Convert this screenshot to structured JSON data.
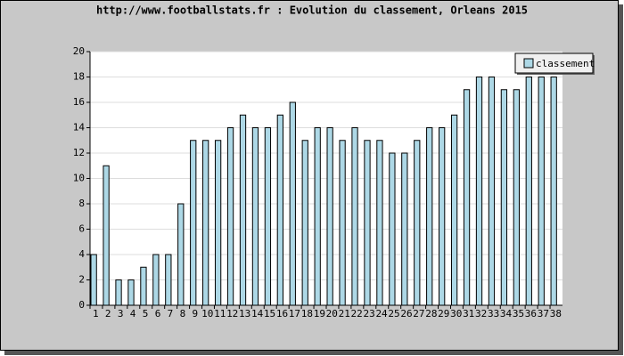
{
  "chart_data": {
    "type": "bar",
    "title": "http://www.footballstats.fr : Evolution du classement, Orleans 2015",
    "categories": [
      "1",
      "2",
      "3",
      "4",
      "5",
      "6",
      "7",
      "8",
      "9",
      "10",
      "11",
      "12",
      "13",
      "14",
      "15",
      "16",
      "17",
      "18",
      "19",
      "20",
      "21",
      "22",
      "23",
      "24",
      "25",
      "26",
      "27",
      "28",
      "29",
      "30",
      "31",
      "32",
      "33",
      "34",
      "35",
      "36",
      "37",
      "38"
    ],
    "series": [
      {
        "name": "classement",
        "color": "#add8e6",
        "values": [
          4,
          11,
          2,
          2,
          3,
          4,
          4,
          8,
          13,
          13,
          13,
          14,
          15,
          14,
          14,
          15,
          16,
          13,
          14,
          14,
          13,
          14,
          13,
          13,
          12,
          12,
          13,
          14,
          14,
          15,
          17,
          18,
          18,
          17,
          17,
          18,
          18,
          18
        ]
      }
    ],
    "ylim": [
      0,
      20
    ],
    "yticks": [
      0,
      2,
      4,
      6,
      8,
      10,
      12,
      14,
      16,
      18,
      20
    ],
    "grid": true,
    "legend": "top-right"
  }
}
